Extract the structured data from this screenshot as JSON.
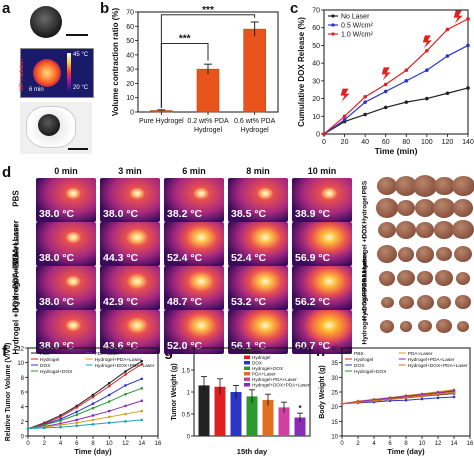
{
  "panel_labels": {
    "a": "a",
    "b": "b",
    "c": "c",
    "d": "d",
    "e": "e",
    "f": "f",
    "g": "g",
    "h": "h"
  },
  "panel_a": {
    "nir_label": "NIR irradiation",
    "time": "6 min",
    "temp_high": "45 °C",
    "temp_low": "20 °C"
  },
  "panel_d": {
    "times": [
      "0 min",
      "3 min",
      "6 min",
      "8 min",
      "10 min"
    ],
    "rows": [
      {
        "label": "PBS",
        "temps": [
          "38.0 °C",
          "38.0 °C",
          "38.2 °C",
          "38.5 °C",
          "38.9 °C"
        ]
      },
      {
        "label": "PDA +Laser",
        "temps": [
          "38.0 °C",
          "44.3 °C",
          "52.4 °C",
          "52.4 °C",
          "56.9 °C"
        ]
      },
      {
        "label": "Hydrogel +PDA +Laser",
        "temps": [
          "38.0 °C",
          "42.9 °C",
          "48.7 °C",
          "53.2 °C",
          "56.2 °C"
        ]
      },
      {
        "label": "Hydrogel +DOX +PDA+Laser",
        "temps": [
          "38.0 °C",
          "43.6 °C",
          "52.0 °C",
          "56.1 °C",
          "60.7 °C"
        ]
      }
    ]
  },
  "panel_e": {
    "rows": [
      "PBS",
      "Hydrogel",
      "DOX",
      "Hydrogel +DOX",
      "PDA +Laser",
      "Hydrogel +PDA+Laser",
      "Hydrogel +DOX +PDA+Laser"
    ]
  },
  "chart_data": [
    {
      "panel": "b",
      "type": "bar",
      "categories": [
        "Pure Hydrogel",
        "0.2 wt% PDA Hydrogel",
        "0.6 wt% PDA Hydrogel"
      ],
      "values": [
        1,
        30,
        58
      ],
      "errors": [
        0.5,
        3.5,
        5
      ],
      "ylabel": "Volume contraction ratio (%)",
      "ylim": [
        0,
        70
      ],
      "yticks": [
        0,
        10,
        20,
        30,
        40,
        50,
        60,
        70
      ],
      "annotations": [
        "***",
        "***"
      ]
    },
    {
      "panel": "c",
      "type": "line",
      "xlabel": "Time (min)",
      "ylabel": "Cumulative DOX Release (%)",
      "xlim": [
        0,
        140
      ],
      "ylim": [
        0,
        70
      ],
      "xticks": [
        0,
        20,
        40,
        60,
        80,
        100,
        120,
        140
      ],
      "yticks": [
        0,
        10,
        20,
        30,
        40,
        50,
        60,
        70
      ],
      "x": [
        0,
        20,
        40,
        60,
        80,
        100,
        120,
        140
      ],
      "series": [
        {
          "name": "No Laser",
          "color": "#222222",
          "values": [
            0,
            7,
            11,
            15,
            18,
            20,
            23,
            26
          ]
        },
        {
          "name": "0.5 W/cm²",
          "color": "#2a35c8",
          "values": [
            0,
            8,
            18,
            24,
            30,
            36,
            44,
            50
          ]
        },
        {
          "name": "1.0 W/cm²",
          "color": "#e02020",
          "values": [
            0,
            10,
            21,
            28,
            36,
            47,
            59,
            65
          ]
        }
      ],
      "legend_position": "top-left"
    },
    {
      "panel": "f",
      "type": "line",
      "xlabel": "Time (day)",
      "ylabel": "Relative Tumor Volume (V/V0)",
      "xlim": [
        0,
        16
      ],
      "ylim": [
        0,
        12
      ],
      "xticks": [
        0,
        2,
        4,
        6,
        8,
        10,
        12,
        14,
        16
      ],
      "yticks": [
        0,
        2,
        4,
        6,
        8,
        10,
        12
      ],
      "x": [
        0,
        2,
        4,
        6,
        8,
        10,
        12,
        14
      ],
      "series": [
        {
          "name": "PBS",
          "color": "#222222",
          "values": [
            1,
            1.8,
            2.8,
            4.1,
            5.6,
            7.2,
            8.8,
            10.2
          ]
        },
        {
          "name": "Hydrogel",
          "color": "#e02020",
          "values": [
            1,
            1.7,
            2.6,
            3.9,
            5.3,
            6.8,
            8.4,
            9.8
          ]
        },
        {
          "name": "DOX",
          "color": "#2a35c8",
          "values": [
            1,
            1.6,
            2.3,
            3.3,
            4.4,
            5.6,
            6.9,
            7.8
          ]
        },
        {
          "name": "Hydrogel+DOX",
          "color": "#2a9a30",
          "values": [
            1,
            1.5,
            2.1,
            2.9,
            3.8,
            4.7,
            5.7,
            6.5
          ]
        },
        {
          "name": "PDA+Laser",
          "color": "#8a2ab8",
          "values": [
            1,
            1.3,
            1.7,
            2.2,
            2.8,
            3.4,
            4.1,
            4.8
          ]
        },
        {
          "name": "Hydrogel+PDA+Laser",
          "color": "#d4a020",
          "values": [
            1,
            1.2,
            1.5,
            1.8,
            2.2,
            2.6,
            3.0,
            3.4
          ]
        },
        {
          "name": "Hydrogel+DOX+PDA+Laser",
          "color": "#20a0c0",
          "values": [
            1,
            1.1,
            1.2,
            1.4,
            1.6,
            1.8,
            2.0,
            2.2
          ]
        }
      ]
    },
    {
      "panel": "g",
      "type": "bar",
      "xlabel": "15th day",
      "ylabel": "Tumor Weight (g)",
      "ylim": [
        0,
        2.0
      ],
      "yticks": [
        0.0,
        0.5,
        1.0,
        1.5,
        2.0
      ],
      "series": [
        {
          "name": "PBS",
          "color": "#222222",
          "value": 1.15,
          "error": 0.2
        },
        {
          "name": "Hydrogel",
          "color": "#e02020",
          "value": 1.12,
          "error": 0.18
        },
        {
          "name": "DOX",
          "color": "#2a35c8",
          "value": 1.0,
          "error": 0.15
        },
        {
          "name": "Hydrogel+DOX",
          "color": "#2a9a30",
          "value": 0.9,
          "error": 0.15
        },
        {
          "name": "PDA+Laser",
          "color": "#e07020",
          "value": 0.82,
          "error": 0.13
        },
        {
          "name": "Hydrogel+PDA+Laser",
          "color": "#d040a0",
          "value": 0.65,
          "error": 0.12
        },
        {
          "name": "Hydrogel+DOX+PDA+Laser",
          "color": "#8a2ab8",
          "value": 0.42,
          "error": 0.1
        }
      ],
      "annotations": [
        "*"
      ]
    },
    {
      "panel": "h",
      "type": "line",
      "xlabel": "Time (day)",
      "ylabel": "Body Weight (g)",
      "xlim": [
        0,
        16
      ],
      "ylim": [
        10,
        40
      ],
      "xticks": [
        0,
        2,
        4,
        6,
        8,
        10,
        12,
        14,
        16
      ],
      "yticks": [
        10,
        15,
        20,
        25,
        30,
        35,
        40
      ],
      "x": [
        0,
        2,
        4,
        6,
        8,
        10,
        12,
        14
      ],
      "series": [
        {
          "name": "PBS",
          "color": "#222222",
          "values": [
            21,
            21.5,
            22,
            22.5,
            23,
            23.5,
            24,
            24.5
          ]
        },
        {
          "name": "Hydrogel",
          "color": "#e02020",
          "values": [
            21,
            21.8,
            22.3,
            22.8,
            23.4,
            24,
            24.6,
            25.2
          ]
        },
        {
          "name": "DOX",
          "color": "#2a35c8",
          "values": [
            21,
            21.3,
            21.6,
            22,
            22.2,
            22.6,
            23,
            23.3
          ]
        },
        {
          "name": "Hydrogel+DOX",
          "color": "#2a9a30",
          "values": [
            21,
            21.6,
            22.1,
            22.6,
            23.1,
            23.7,
            24.2,
            24.8
          ]
        },
        {
          "name": "PDA+Laser",
          "color": "#d4a020",
          "values": [
            21,
            21.9,
            22.5,
            23.1,
            23.8,
            24.4,
            25.1,
            25.8
          ]
        },
        {
          "name": "Hydrogel+PDA+Laser",
          "color": "#8a2ab8",
          "values": [
            21,
            21.7,
            22.4,
            23,
            23.6,
            24.2,
            24.8,
            25.5
          ]
        },
        {
          "name": "Hydrogel+DOX+PDA+Laser",
          "color": "#e07020",
          "values": [
            21,
            21.4,
            22,
            22.5,
            23.1,
            23.6,
            24.2,
            24.7
          ]
        }
      ]
    }
  ]
}
